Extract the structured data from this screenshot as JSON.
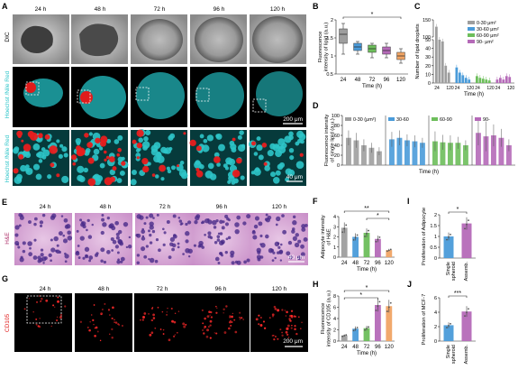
{
  "panel_letters": [
    "A",
    "B",
    "C",
    "D",
    "E",
    "F",
    "G",
    "H",
    "I",
    "J"
  ],
  "timepoints": [
    "24 h",
    "48 h",
    "72 h",
    "96 h",
    "120 h"
  ],
  "row_labels": {
    "dic": "DIC",
    "fluor_a": "Hoechst /Nile Red",
    "fluor_b": "Hoechst /Nile Red",
    "he": "H&E",
    "cd105": "CD105"
  },
  "scale_bars": {
    "a": "200 μm",
    "a_zoom": "40 μm",
    "e": "40 μm",
    "g": "200 μm"
  },
  "colors": {
    "gray": "#9e9e9e",
    "blue": "#4a9bd9",
    "green": "#6dbe5b",
    "purple": "#b56ab8",
    "orange": "#f0a464",
    "cyan": "#2ec5c9",
    "red": "#e01b1b"
  },
  "chart_data": [
    {
      "panel": "B",
      "type": "box",
      "ylabel": "Fluorescence intensity of lipid (a.u.)",
      "xlabel": "Time (h)",
      "categories": [
        "24",
        "48",
        "72",
        "96",
        "120"
      ],
      "yticks": [
        0.5,
        1.0,
        1.5,
        2.0
      ],
      "ylim": [
        0.5,
        2.0
      ],
      "boxes": [
        {
          "min": 1.05,
          "q1": 1.35,
          "median": 1.6,
          "q3": 1.75,
          "max": 1.9
        },
        {
          "min": 1.05,
          "q1": 1.15,
          "median": 1.25,
          "q3": 1.35,
          "max": 1.4
        },
        {
          "min": 0.95,
          "q1": 1.1,
          "median": 1.2,
          "q3": 1.3,
          "max": 1.35
        },
        {
          "min": 0.95,
          "q1": 1.05,
          "median": 1.15,
          "q3": 1.25,
          "max": 1.35
        },
        {
          "min": 0.8,
          "q1": 0.9,
          "median": 1.0,
          "q3": 1.1,
          "max": 1.2
        }
      ],
      "significance": [
        {
          "from": "24",
          "to": "120",
          "label": "*"
        }
      ]
    },
    {
      "panel": "C",
      "type": "bar",
      "ylabel": "Number of lipid droplets",
      "xlabel": "Time (h)",
      "yticks": [
        0,
        10,
        20,
        30,
        40,
        50,
        100,
        150
      ],
      "axis_break": [
        50,
        100
      ],
      "xtick_labels": [
        "24",
        "120",
        "24",
        "120",
        "24",
        "120",
        "24",
        "120"
      ],
      "legend": [
        "0-30 μm²",
        "30-60 μm²",
        "60-90 μm²",
        "90- μm²"
      ],
      "series": [
        {
          "name": "0-30 μm²",
          "values": [
            130,
            90,
            48,
            20,
            12
          ]
        },
        {
          "name": "30-60 μm²",
          "values": [
            18,
            12,
            9,
            6,
            4
          ]
        },
        {
          "name": "60-90 μm²",
          "values": [
            8,
            6,
            5,
            4,
            3
          ]
        },
        {
          "name": "90- μm²",
          "values": [
            4,
            6,
            4,
            8,
            7
          ]
        }
      ]
    },
    {
      "panel": "D",
      "type": "bar",
      "ylabel": "Fluorescence intensity of single lipid (a.u.)",
      "xlabel": "Time (h)",
      "yticks": [
        0,
        20,
        40,
        60,
        80,
        100
      ],
      "ylim": [
        0,
        100
      ],
      "groups": [
        "0-30 (μm²)",
        "30-60",
        "60-90",
        "90-"
      ],
      "series": [
        {
          "name": "0-30",
          "values": [
            55,
            50,
            40,
            35,
            28
          ],
          "errors": [
            15,
            15,
            12,
            10,
            8
          ]
        },
        {
          "name": "30-60",
          "values": [
            52,
            55,
            50,
            48,
            45
          ],
          "errors": [
            15,
            15,
            12,
            12,
            10
          ]
        },
        {
          "name": "60-90",
          "values": [
            48,
            46,
            45,
            45,
            40
          ],
          "errors": [
            20,
            15,
            15,
            12,
            10
          ]
        },
        {
          "name": "90-",
          "values": [
            65,
            58,
            60,
            55,
            40
          ],
          "errors": [
            25,
            30,
            22,
            18,
            12
          ]
        }
      ]
    },
    {
      "panel": "F",
      "type": "bar",
      "ylabel": "Adipocyte intensity of H&E",
      "xlabel": "Time (h)",
      "categories": [
        "24",
        "48",
        "72",
        "96",
        "120"
      ],
      "values": [
        2.9,
        2.0,
        2.4,
        1.8,
        0.7
      ],
      "yticks": [
        0,
        1,
        2,
        3,
        4
      ],
      "ylim": [
        0,
        4
      ],
      "significance": [
        {
          "from": "24",
          "to": "120",
          "label": "**"
        },
        {
          "from": "72",
          "to": "120",
          "label": "*"
        }
      ]
    },
    {
      "panel": "H",
      "type": "bar",
      "ylabel": "Fluorescence intensity of CD105 (a.u.)",
      "xlabel": "Time (h)",
      "categories": [
        "24",
        "48",
        "72",
        "96",
        "120"
      ],
      "values": [
        1.0,
        2.2,
        2.3,
        6.4,
        6.2
      ],
      "yticks": [
        0,
        2,
        4,
        6,
        8
      ],
      "ylim": [
        0,
        8
      ],
      "significance": [
        {
          "from": "24",
          "to": "120",
          "label": "*"
        },
        {
          "from": "24",
          "to": "96",
          "label": "*"
        }
      ]
    },
    {
      "panel": "I",
      "type": "bar",
      "ylabel": "Proliferation of Adipocyte",
      "categories": [
        "Single spheroid",
        "Assemb."
      ],
      "values": [
        1.0,
        1.6
      ],
      "yticks": [
        0.0,
        0.5,
        1.0,
        1.5,
        2.0
      ],
      "ylim": [
        0,
        2
      ],
      "significance": [
        {
          "from": "Single spheroid",
          "to": "Assemb.",
          "label": "*"
        }
      ]
    },
    {
      "panel": "J",
      "type": "bar",
      "ylabel": "Proliferation of MCF-7",
      "categories": [
        "Single spheroid",
        "Assemb."
      ],
      "values": [
        2.2,
        4.1
      ],
      "yticks": [
        0,
        2,
        4,
        6
      ],
      "ylim": [
        0,
        6
      ],
      "significance": [
        {
          "from": "Single spheroid",
          "to": "Assemb.",
          "label": "***"
        }
      ]
    }
  ]
}
